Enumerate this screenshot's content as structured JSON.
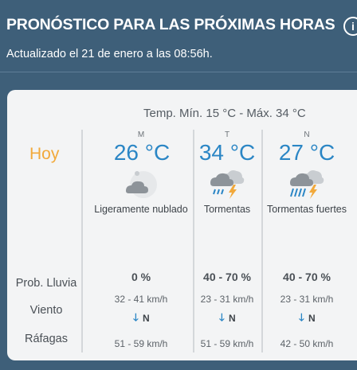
{
  "header": {
    "title": "PRONÓSTICO PARA LAS PRÓXIMAS HORAS",
    "info_icon": "info-icon",
    "info_glyph": "i",
    "updated": "Actualizado el 21 de enero a las 08:56h."
  },
  "forecast": {
    "temp_range": "Temp. Mín. 15 °C - Máx. 34 °C",
    "day_label": "Hoy",
    "periods": [
      {
        "code": "M",
        "temp": "26 °C",
        "icon": "partly-cloudy-icon",
        "description": "Ligeramente nublado",
        "rain_prob": "0 %",
        "wind_speed": "32 - 41 km/h",
        "wind_dir": "N",
        "gusts": "51 - 59 km/h"
      },
      {
        "code": "T",
        "temp": "34 °C",
        "icon": "thunderstorm-icon",
        "description": "Tormentas",
        "rain_prob": "40 - 70 %",
        "wind_speed": "23 - 31 km/h",
        "wind_dir": "N",
        "gusts": "51 - 59 km/h"
      },
      {
        "code": "N",
        "temp": "27 °C",
        "icon": "heavy-thunderstorm-icon",
        "description": "Tormentas fuertes",
        "rain_prob": "40 - 70 %",
        "wind_speed": "23 - 31 km/h",
        "wind_dir": "N",
        "gusts": "42 - 50 km/h"
      }
    ],
    "labels": {
      "rain": "Prob. Lluvia",
      "wind": "Viento",
      "gusts": "Ráfagas"
    },
    "wind_arrow_glyph": "🡓"
  },
  "colors": {
    "background": "#3e5f79",
    "card": "#f3f4f5",
    "temp": "#2b86c5",
    "today": "#f2a93b"
  }
}
